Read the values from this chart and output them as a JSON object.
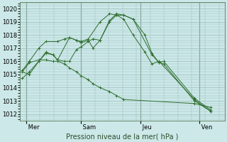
{
  "background_color": "#cce8e8",
  "grid_color": "#99bbbb",
  "line_color": "#2d6e2d",
  "marker_color": "#2d6e2d",
  "xlabel": "Pression niveau de la mer( hPa )",
  "ylim": [
    1011.5,
    1020.5
  ],
  "yticks": [
    1012,
    1013,
    1014,
    1015,
    1016,
    1017,
    1018,
    1019,
    1020
  ],
  "day_labels": [
    " Mer",
    " Sam",
    " Jeu",
    " Ven"
  ],
  "day_positions": [
    0.16,
    2.5,
    5.0,
    7.5
  ],
  "xlim": [
    -0.1,
    8.6
  ],
  "series": [
    [
      1014.7,
      1015.2,
      1016.0,
      1016.7,
      1016.5,
      1016.1,
      1016.0,
      1016.0,
      1016.9,
      1017.1,
      1017.5,
      1017.7,
      1017.6,
      1019.0,
      1019.5,
      1019.5,
      1019.2,
      1018.0,
      1016.6,
      1015.9,
      1015.8,
      1013.0,
      1012.2
    ],
    [
      1015.2,
      1015.0,
      1016.0,
      1016.6,
      1016.5,
      1016.1,
      1017.8,
      1017.6,
      1017.4,
      1017.6,
      1017.0,
      1017.6,
      1019.1,
      1019.6,
      1019.5,
      1019.2,
      1016.5,
      1015.9,
      1016.0,
      1013.2,
      1012.3
    ],
    [
      1015.2,
      1015.9,
      1016.1,
      1016.1,
      1016.0,
      1016.0,
      1015.8,
      1015.5,
      1015.2,
      1014.9,
      1014.6,
      1014.3,
      1014.0,
      1013.7,
      1013.4,
      1013.1,
      1012.8,
      1012.5
    ],
    [
      1015.3,
      1016.0,
      1017.0,
      1017.5,
      1017.5,
      1017.7,
      1017.8,
      1017.6,
      1017.5,
      1017.7,
      1019.0,
      1019.6,
      1019.5,
      1019.2,
      1018.0,
      1016.7,
      1015.8,
      1016.0,
      1013.1,
      1012.2
    ]
  ],
  "series_x": [
    [
      0.0,
      0.3,
      0.7,
      1.0,
      1.3,
      1.5,
      1.8,
      2.0,
      2.3,
      2.5,
      2.8,
      3.0,
      3.3,
      3.7,
      4.0,
      4.3,
      4.7,
      5.2,
      5.5,
      5.8,
      6.0,
      7.3,
      8.0
    ],
    [
      0.0,
      0.3,
      0.7,
      1.0,
      1.3,
      1.5,
      2.0,
      2.3,
      2.5,
      2.8,
      3.0,
      3.3,
      3.7,
      4.0,
      4.3,
      4.7,
      5.5,
      5.8,
      6.0,
      7.3,
      8.0
    ],
    [
      0.0,
      0.3,
      0.7,
      1.0,
      1.3,
      1.5,
      1.8,
      2.0,
      2.3,
      2.5,
      2.8,
      3.0,
      3.3,
      3.7,
      4.0,
      4.3,
      7.3,
      8.0
    ],
    [
      0.0,
      0.3,
      0.7,
      1.0,
      1.5,
      1.8,
      2.0,
      2.3,
      2.5,
      2.8,
      3.3,
      3.7,
      4.0,
      4.3,
      4.7,
      5.2,
      5.5,
      5.8,
      7.3,
      8.0
    ]
  ]
}
